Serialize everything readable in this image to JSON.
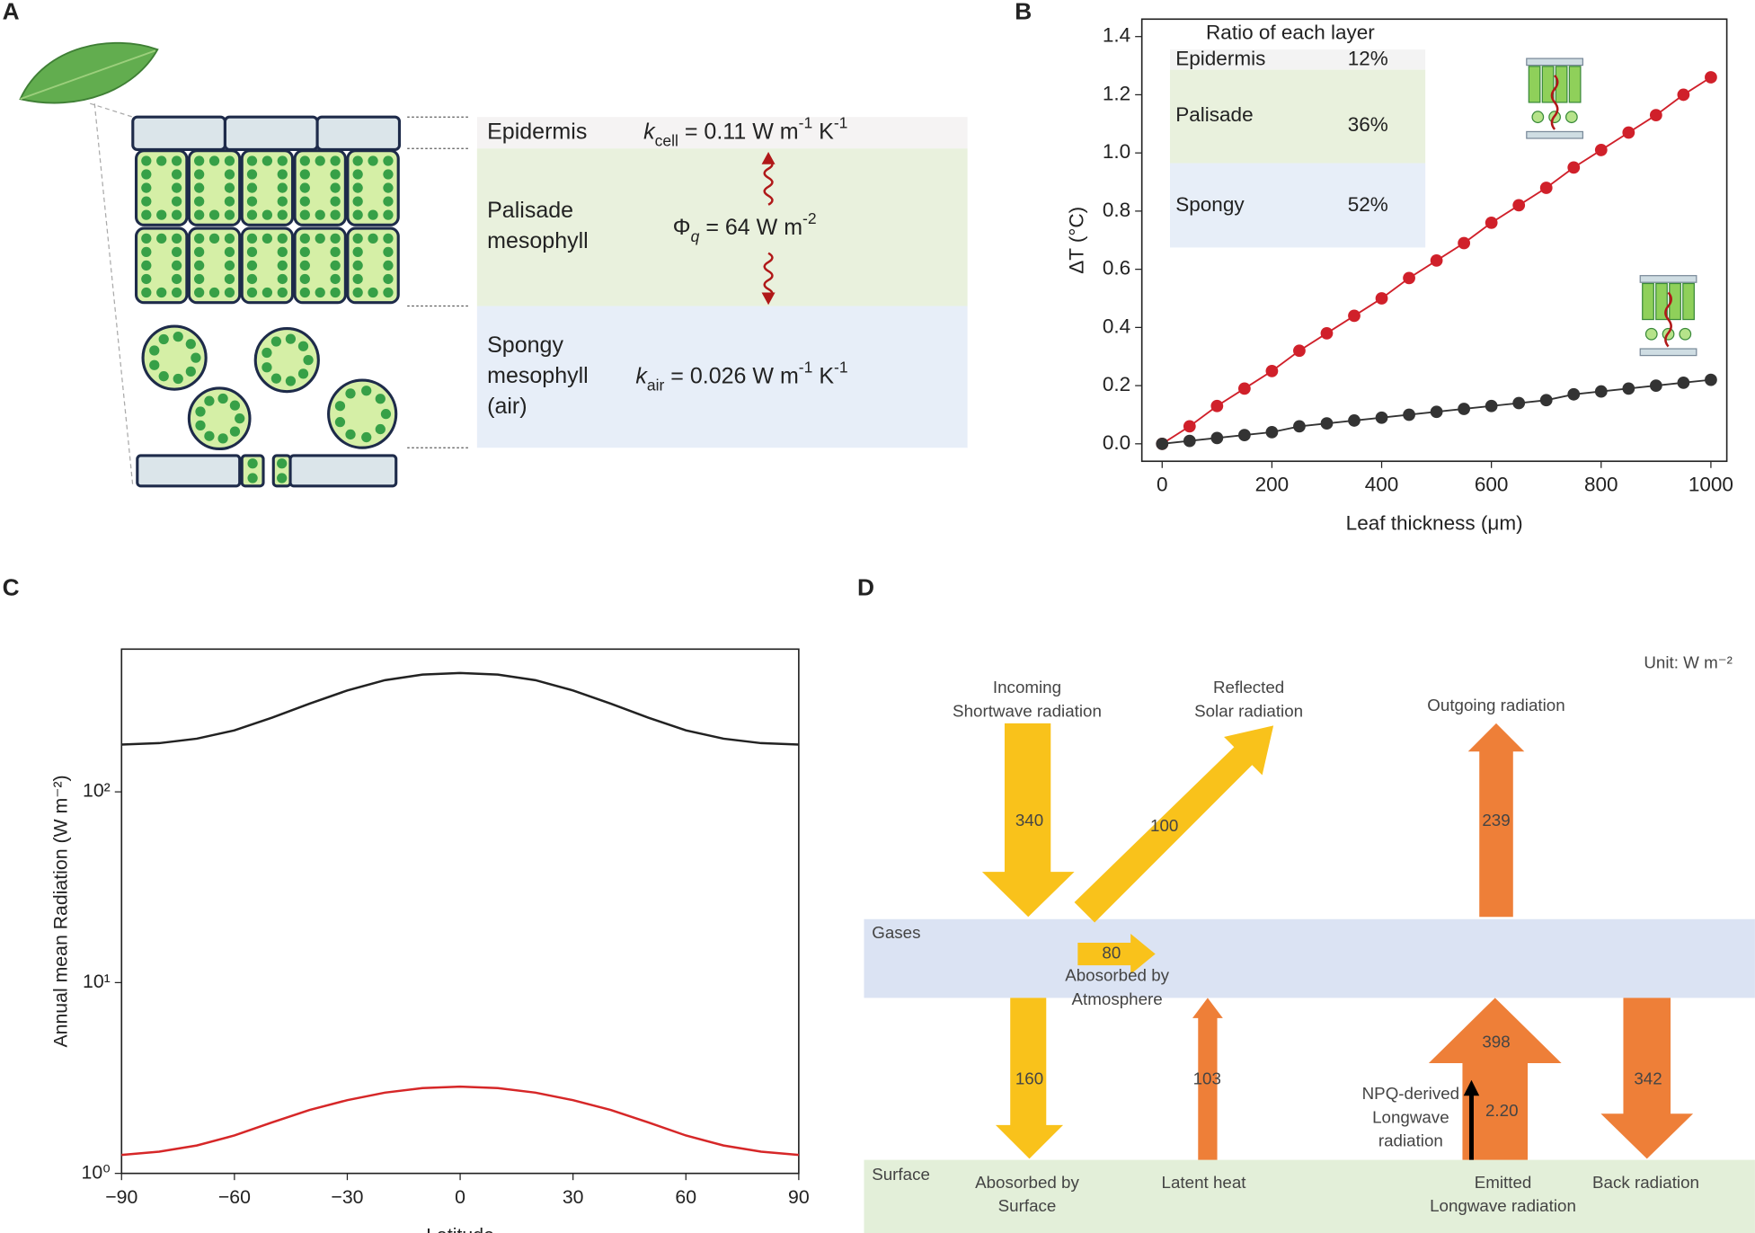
{
  "panel_labels": [
    "A",
    "B",
    "C",
    "D"
  ],
  "panel_a": {
    "epidermis": "Epidermis",
    "k_cell": [
      {
        "text": "k",
        "italic": true
      },
      {
        "text": "cell",
        "baseline": "sub"
      },
      {
        "text": " = 0.11 W m"
      },
      {
        "text": "-1",
        "baseline": "sup"
      },
      {
        "text": " K"
      },
      {
        "text": "-1",
        "baseline": "sup"
      }
    ],
    "palisade": [
      "Palisade",
      "mesophyll"
    ],
    "phi_q": [
      {
        "text": "Φ"
      },
      {
        "text": "q",
        "baseline": "sub",
        "italic": true
      },
      {
        "text": " = 64 W m"
      },
      {
        "text": "-2",
        "baseline": "sup"
      }
    ],
    "spongy": [
      "Spongy",
      "mesophyll",
      "(air)"
    ],
    "k_air": [
      {
        "text": "k",
        "italic": true
      },
      {
        "text": "air",
        "baseline": "sub"
      },
      {
        "text": " = 0.026 W m"
      },
      {
        "text": "-1",
        "baseline": "sup"
      },
      {
        "text": " K"
      },
      {
        "text": "-1",
        "baseline": "sup"
      }
    ]
  },
  "chart_data": [
    {
      "type": "line",
      "markers": true,
      "xlabel": "Leaf thickness (μm)",
      "ylabel": "ΔT (°C)",
      "x": [
        0,
        50,
        100,
        150,
        200,
        250,
        300,
        350,
        400,
        450,
        500,
        550,
        600,
        650,
        700,
        750,
        800,
        850,
        900,
        950,
        1000
      ],
      "series": [
        {
          "color": "#d0202a",
          "values": [
            0,
            0.06,
            0.13,
            0.19,
            0.25,
            0.32,
            0.38,
            0.44,
            0.5,
            0.57,
            0.63,
            0.69,
            0.76,
            0.82,
            0.88,
            0.95,
            1.01,
            1.07,
            1.13,
            1.2,
            1.26
          ]
        },
        {
          "color": "#333333",
          "values": [
            0,
            0.01,
            0.02,
            0.03,
            0.04,
            0.06,
            0.07,
            0.08,
            0.09,
            0.1,
            0.11,
            0.12,
            0.13,
            0.14,
            0.15,
            0.17,
            0.18,
            0.19,
            0.2,
            0.21,
            0.22
          ]
        }
      ],
      "xlim": [
        -37,
        1029
      ],
      "ylim": [
        -0.06,
        1.46
      ],
      "xticks": [
        0,
        200,
        400,
        600,
        800,
        1000
      ],
      "yticks": [
        {
          "value": 0,
          "label": "0.0"
        },
        0.2,
        0.4,
        0.6,
        0.8,
        {
          "value": 1,
          "label": "1.0"
        },
        1.2,
        1.4
      ],
      "inset_table": {
        "title": "Ratio of each layer",
        "rows": [
          [
            "Epidermis",
            "12%"
          ],
          [
            "Palisade",
            "36%"
          ],
          [
            "Spongy",
            "52%"
          ]
        ]
      }
    },
    {
      "type": "line",
      "markers": false,
      "log_y": true,
      "xlabel": "Latitude",
      "ylabel": "Annual mean Radiation (W m⁻²)",
      "x": [
        -90,
        -80,
        -70,
        -60,
        -50,
        -40,
        -30,
        -20,
        -10,
        0,
        10,
        20,
        30,
        40,
        50,
        60,
        70,
        80,
        90
      ],
      "series": [
        {
          "color": "#222222",
          "values": [
            177,
            180,
            190,
            210,
            245,
            290,
            340,
            385,
            412,
            420,
            412,
            385,
            340,
            290,
            245,
            210,
            190,
            180,
            177
          ]
        },
        {
          "color": "#d62728",
          "values": [
            1.25,
            1.3,
            1.4,
            1.58,
            1.85,
            2.15,
            2.42,
            2.65,
            2.8,
            2.85,
            2.8,
            2.65,
            2.42,
            2.15,
            1.85,
            1.58,
            1.4,
            1.3,
            1.25
          ]
        }
      ],
      "xlim": [
        -90,
        90
      ],
      "ylim": [
        1,
        560
      ],
      "xticks": [
        {
          "value": -90,
          "label": "−90"
        },
        {
          "value": -60,
          "label": "−60"
        },
        {
          "value": -30,
          "label": "−30"
        },
        0,
        30,
        60,
        90
      ],
      "yticks": [
        {
          "value": 1,
          "label": "10⁰"
        },
        {
          "value": 10,
          "label": "10¹"
        },
        {
          "value": 100,
          "label": "10²"
        }
      ]
    }
  ],
  "panel_d": {
    "unit": "Unit: W m⁻²",
    "incoming": [
      "Incoming",
      "Shortwave radiation"
    ],
    "reflected": [
      "Reflected",
      "Solar radiation"
    ],
    "outgoing": [
      "Outgoing radiation"
    ],
    "gases": "Gases",
    "surface": "Surface",
    "absorbed_atmosphere": [
      "Abosorbed by",
      "Atmosphere"
    ],
    "absorbed_surface": [
      "Abosorbed by",
      "Surface"
    ],
    "latent_heat": [
      "Latent heat"
    ],
    "emitted": [
      "Emitted",
      "Longwave radiation"
    ],
    "back_radiation": [
      "Back radiation"
    ],
    "npq": [
      "NPQ-derived",
      "Longwave",
      "radiation"
    ],
    "values": {
      "incoming": "340",
      "reflected": "100",
      "outgoing": "239",
      "atmosphere": "80",
      "surface": "160",
      "latent": "103",
      "emitted": "398",
      "npq": "2.20",
      "back": "342"
    }
  }
}
